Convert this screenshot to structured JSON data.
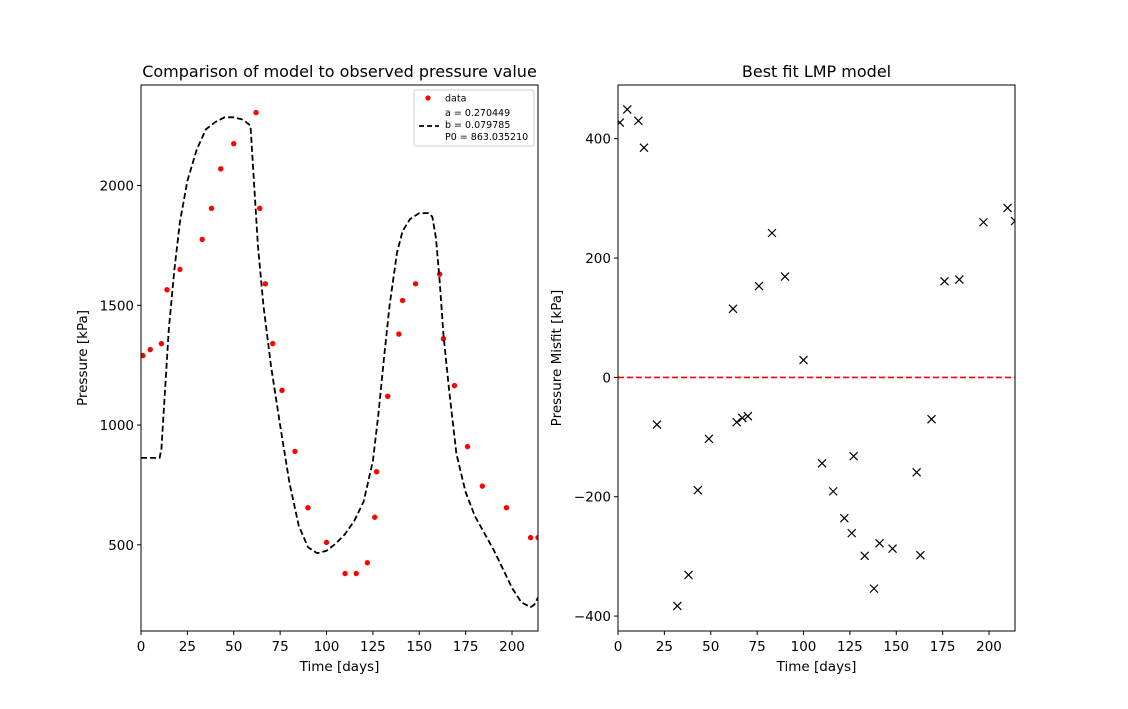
{
  "chart_data": [
    {
      "type": "scatter",
      "title": "Comparison of model to observed pressure value",
      "xlabel": "Time [days]",
      "ylabel": "Pressure [kPa]",
      "xlim": [
        0,
        214
      ],
      "ylim": [
        140,
        2420
      ],
      "xticks": [
        0,
        25,
        50,
        75,
        100,
        125,
        150,
        175,
        200
      ],
      "yticks": [
        500,
        1000,
        1500,
        2000
      ],
      "legend": {
        "placement": "upper-right",
        "entries": [
          {
            "label": "data",
            "marker": "dot",
            "color": "#ff0000"
          },
          {
            "label_lines": [
              "a = 0.270449",
              "b = 0.079785",
              "P0 = 863.035210"
            ],
            "marker": "dashed-line",
            "color": "#000000"
          }
        ]
      },
      "series": [
        {
          "name": "data",
          "style": "points",
          "color": "#ff0000",
          "x": [
            1,
            5,
            11,
            14,
            21,
            33,
            38,
            43,
            50,
            62,
            64,
            67,
            71,
            76,
            83,
            90,
            100,
            110,
            116,
            122,
            126,
            127,
            133,
            139,
            141,
            148,
            161,
            163,
            169,
            176,
            184,
            197,
            210,
            214
          ],
          "y": [
            1290,
            1315,
            1340,
            1565,
            1650,
            1775,
            1905,
            2070,
            2175,
            2305,
            1905,
            1590,
            1340,
            1145,
            890,
            655,
            510,
            380,
            380,
            425,
            615,
            805,
            1120,
            1380,
            1520,
            1590,
            1630,
            1360,
            1165,
            910,
            745,
            655,
            530,
            530
          ]
        },
        {
          "style": "dashed-line",
          "color": "#000000",
          "x": [
            0,
            5,
            10,
            11,
            13,
            15,
            18,
            21,
            25,
            30,
            35,
            40,
            45,
            50,
            55,
            59,
            61,
            63,
            66,
            70,
            75,
            80,
            85,
            90,
            95,
            100,
            105,
            110,
            115,
            120,
            125,
            128,
            131,
            134,
            138,
            141,
            145,
            150,
            155,
            157,
            159,
            161,
            163,
            166,
            170,
            175,
            180,
            185,
            190,
            195,
            200,
            205,
            210,
            212,
            214
          ],
          "y": [
            863,
            863,
            863,
            900,
            1150,
            1400,
            1650,
            1850,
            2020,
            2150,
            2235,
            2265,
            2285,
            2285,
            2275,
            2250,
            2000,
            1750,
            1500,
            1250,
            1000,
            760,
            580,
            490,
            465,
            475,
            505,
            545,
            600,
            680,
            850,
            1050,
            1280,
            1500,
            1720,
            1810,
            1860,
            1885,
            1885,
            1870,
            1780,
            1600,
            1380,
            1150,
            880,
            720,
            620,
            550,
            480,
            400,
            320,
            260,
            240,
            250,
            280
          ]
        }
      ]
    },
    {
      "type": "scatter",
      "title": "Best fit LMP model",
      "xlabel": "Time [days]",
      "ylabel": "Pressure Misfit [kPa]",
      "xlim": [
        0,
        214
      ],
      "ylim": [
        -425,
        490
      ],
      "xticks": [
        0,
        25,
        50,
        75,
        100,
        125,
        150,
        175,
        200
      ],
      "yticks": [
        -400,
        -200,
        0,
        200,
        400
      ],
      "reference_line": {
        "y": 0,
        "color": "#ff0000",
        "style": "dashed"
      },
      "series": [
        {
          "style": "x-markers",
          "color": "#000000",
          "x": [
            1,
            5,
            11,
            14,
            21,
            32,
            38,
            43,
            49,
            62,
            64,
            67,
            70,
            76,
            83,
            90,
            100,
            110,
            116,
            122,
            126,
            127,
            133,
            138,
            141,
            148,
            161,
            163,
            169,
            176,
            184,
            197,
            210,
            214
          ],
          "y": [
            427,
            449,
            430,
            385,
            -79,
            -383,
            -331,
            -189,
            -103,
            115,
            -75,
            -68,
            -65,
            153,
            242,
            169,
            29,
            -144,
            -191,
            -236,
            -261,
            -132,
            -299,
            -354,
            -278,
            -287,
            -159,
            -298,
            -70,
            161,
            164,
            260,
            284,
            262
          ]
        }
      ]
    }
  ]
}
